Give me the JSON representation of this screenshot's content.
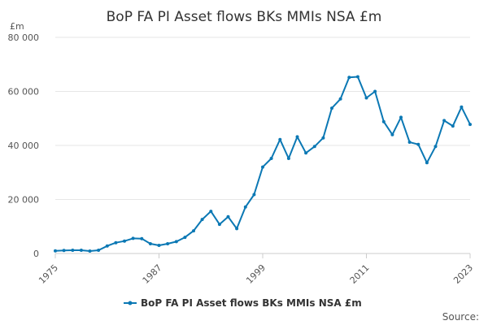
{
  "chart_data": {
    "type": "line",
    "title": "BoP FA PI Asset flows BKs MMIs NSA £m",
    "ylabel": "£m",
    "xlabel": "",
    "ylim": [
      0,
      80000
    ],
    "y_ticks": [
      0,
      20000,
      40000,
      60000,
      80000
    ],
    "y_tick_labels": [
      "0",
      "20 000",
      "40 000",
      "60 000",
      "80 000"
    ],
    "x_ticks": [
      1975,
      1987,
      1999,
      2011,
      2023
    ],
    "x_tick_labels": [
      "1975",
      "1987",
      "1999",
      "2011",
      "2023"
    ],
    "grid": "horizontal",
    "legend_position": "bottom",
    "series": [
      {
        "name": "BoP FA PI Asset flows BKs MMIs NSA £m",
        "color": "#0b78b4",
        "x": [
          1975,
          1976,
          1977,
          1978,
          1979,
          1980,
          1981,
          1982,
          1983,
          1984,
          1985,
          1986,
          1987,
          1988,
          1989,
          1990,
          1991,
          1992,
          1993,
          1994,
          1995,
          1996,
          1997,
          1998,
          1999,
          2000,
          2001,
          2002,
          2003,
          2004,
          2005,
          2006,
          2007,
          2008,
          2009,
          2010,
          2011,
          2012,
          2013,
          2014,
          2015,
          2016,
          2017,
          2018,
          2019,
          2020,
          2021,
          2022,
          2023
        ],
        "values": [
          1000,
          1100,
          1200,
          1200,
          900,
          1200,
          2800,
          4000,
          4600,
          5600,
          5500,
          3600,
          3000,
          3600,
          4400,
          6000,
          8400,
          12600,
          15600,
          10800,
          13600,
          9200,
          17200,
          21800,
          32000,
          35200,
          42200,
          35200,
          43200,
          37200,
          39600,
          42800,
          53800,
          57200,
          65200,
          65400,
          57600,
          60000,
          48800,
          44000,
          50400,
          41200,
          40400,
          33600,
          39600,
          49200,
          47200,
          54200,
          47800
        ]
      }
    ],
    "source_label": "Source:"
  }
}
